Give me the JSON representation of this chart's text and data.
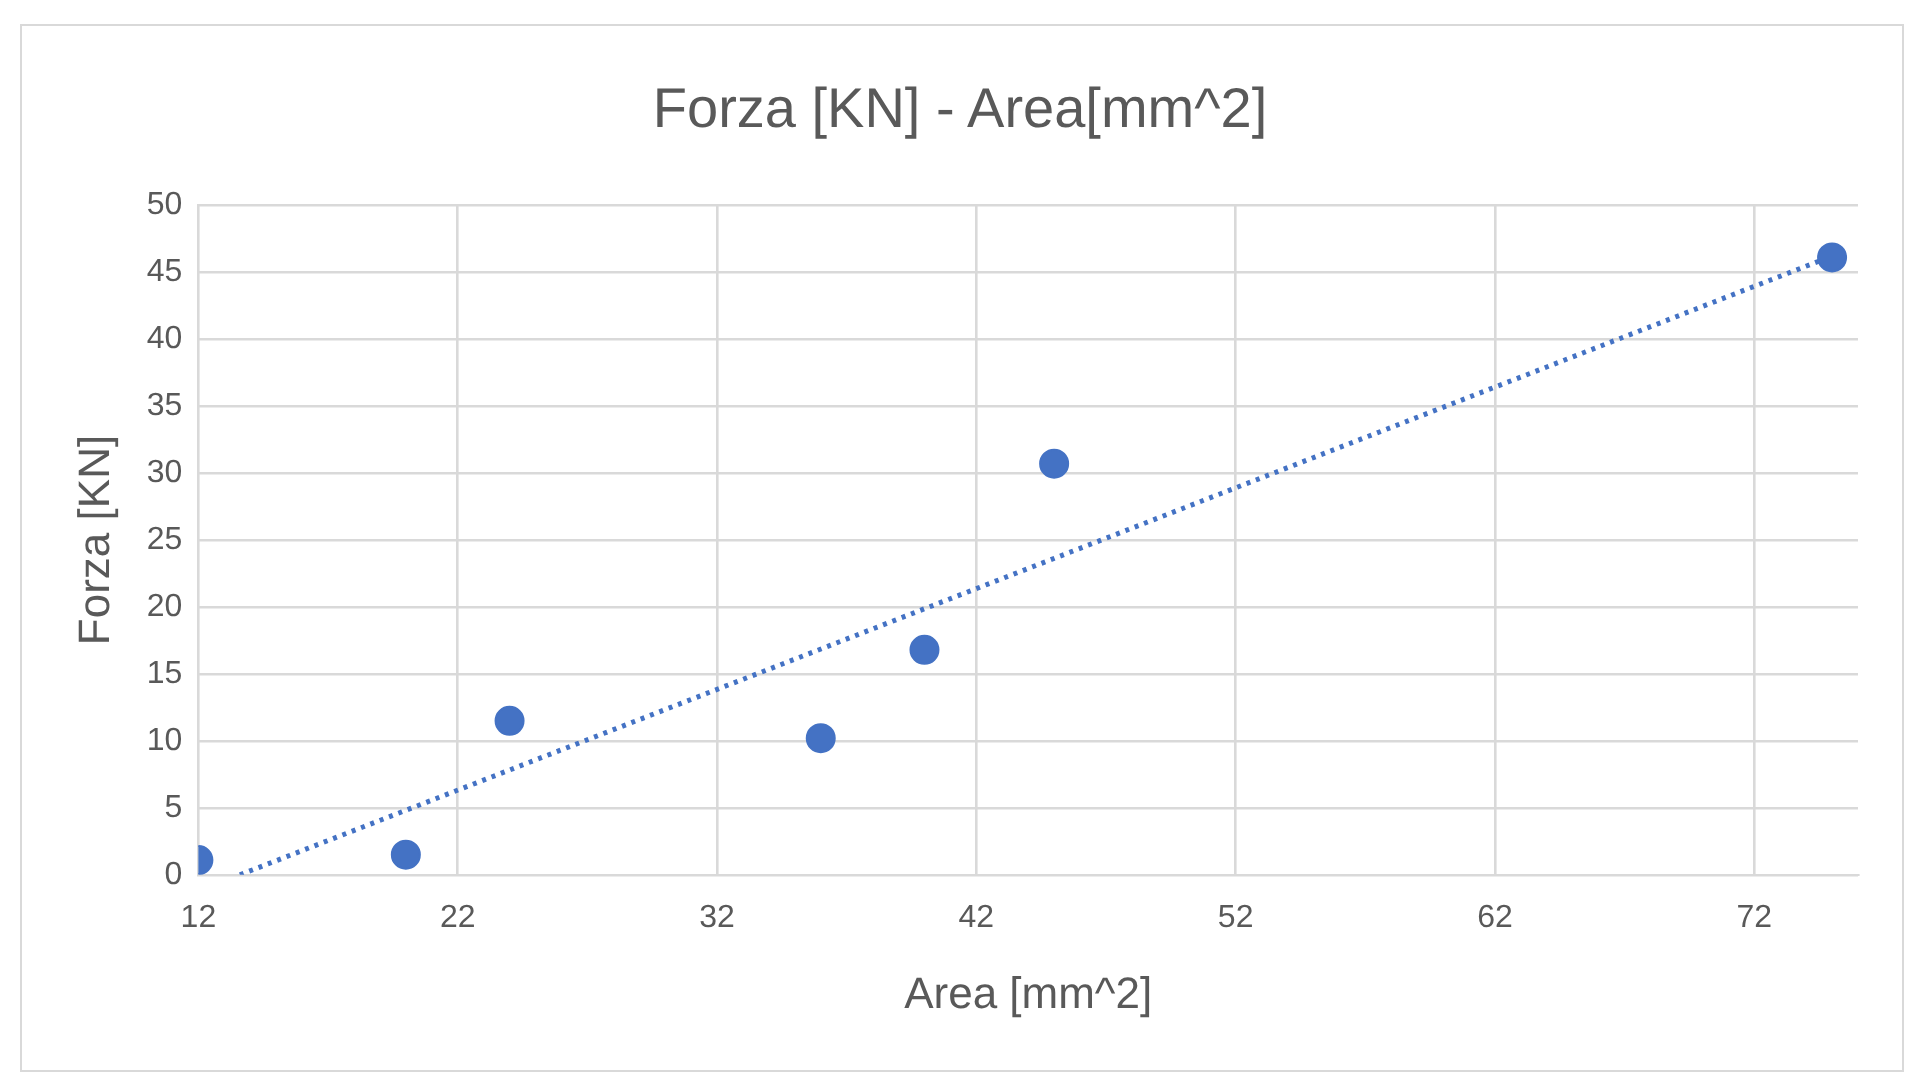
{
  "chart_data": {
    "type": "scatter",
    "title": "Forza [KN] - Area[mm^2]",
    "xlabel": "Area [mm^2]",
    "ylabel": "Forza [KN]",
    "series": [
      {
        "color": "#4472c4",
        "x": [
          12,
          20,
          24,
          36,
          40,
          45,
          75
        ],
        "values": [
          1.1,
          1.5,
          11.5,
          10.2,
          16.8,
          30.7,
          46.1
        ],
        "marker": "circle"
      },
      {
        "type": "line",
        "color": "#4472c4",
        "x": [
          13.6,
          75
        ],
        "values": [
          0,
          46.2
        ],
        "line_style": "dotted",
        "marker": "none"
      }
    ],
    "xlim": [
      12,
      76
    ],
    "xticks": [
      12,
      22,
      32,
      42,
      52,
      62,
      72
    ],
    "ylim": [
      0,
      50
    ],
    "yticks": [
      0,
      5,
      10,
      15,
      20,
      25,
      30,
      35,
      40,
      45,
      50
    ],
    "grid": true,
    "legend": false
  }
}
